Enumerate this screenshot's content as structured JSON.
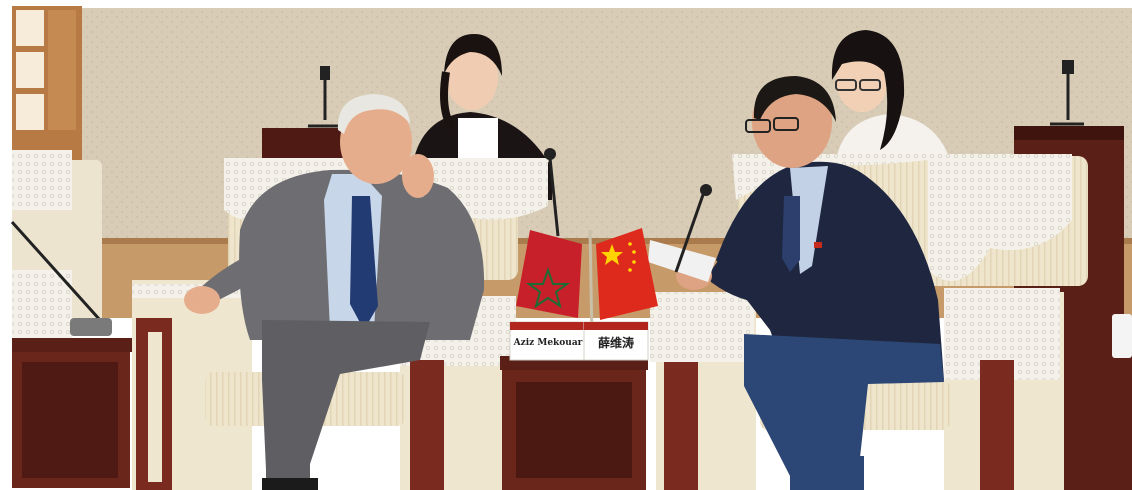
{
  "image": {
    "description_free": true
  },
  "name_cards": {
    "left": {
      "name": "Aziz Mekouar"
    },
    "right": {
      "name": "薛维涛"
    }
  },
  "flags": {
    "left": {
      "icon": "morocco-flag-icon",
      "field_color": "#c8202a",
      "star_color": "#1f6b34"
    },
    "right": {
      "icon": "china-flag-icon",
      "field_color": "#de2a1d",
      "star_color": "#ffd400"
    }
  },
  "palette": {
    "wall": "#d9cdb8",
    "chair_cushion": "#efe6cf",
    "chair_wood": "#7a2a1f",
    "lace": "#f3efe8",
    "table_wood": "#5a1f17"
  }
}
